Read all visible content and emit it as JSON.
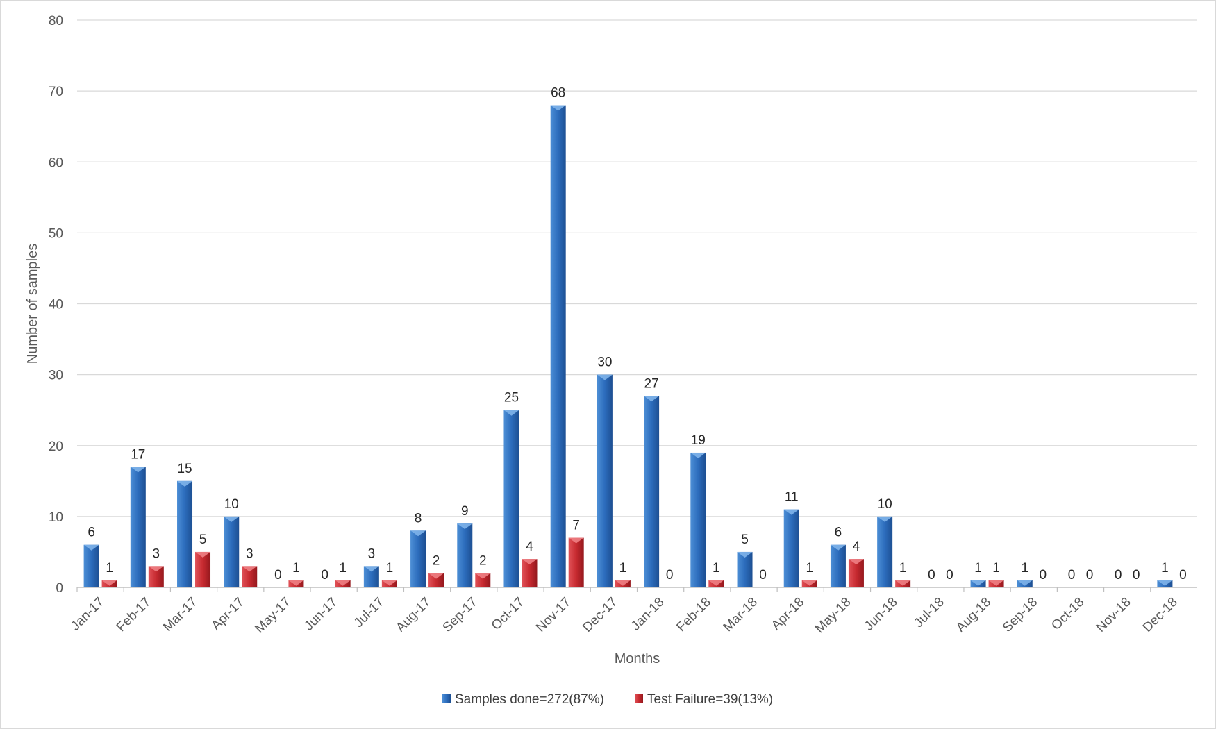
{
  "chart_data": {
    "type": "bar",
    "title": "",
    "xlabel": "Months",
    "ylabel": "Number of samples",
    "ylim": [
      0,
      80
    ],
    "yticks": [
      0,
      10,
      20,
      30,
      40,
      50,
      60,
      70,
      80
    ],
    "grid": true,
    "legend_position": "bottom",
    "categories": [
      "Jan-17",
      "Feb-17",
      "Mar-17",
      "Apr-17",
      "May-17",
      "Jun-17",
      "Jul-17",
      "Aug-17",
      "Sep-17",
      "Oct-17",
      "Nov-17",
      "Dec-17",
      "Jan-18",
      "Feb-18",
      "Mar-18",
      "Apr-18",
      "May-18",
      "Jun-18",
      "Jul-18",
      "Aug-18",
      "Sep-18",
      "Oct-18",
      "Nov-18",
      "Dec-18"
    ],
    "series": [
      {
        "name": "Samples done=272(87%)",
        "color": "#2e6fbf",
        "values": [
          6,
          17,
          15,
          10,
          0,
          0,
          3,
          8,
          9,
          25,
          68,
          30,
          27,
          19,
          5,
          11,
          6,
          10,
          0,
          1,
          1,
          0,
          0,
          1
        ]
      },
      {
        "name": "Test Failure=39(13%)",
        "color": "#c0282d",
        "values": [
          1,
          3,
          5,
          3,
          1,
          1,
          1,
          2,
          2,
          4,
          7,
          1,
          0,
          1,
          0,
          1,
          4,
          1,
          0,
          1,
          0,
          0,
          0,
          0
        ]
      }
    ]
  }
}
